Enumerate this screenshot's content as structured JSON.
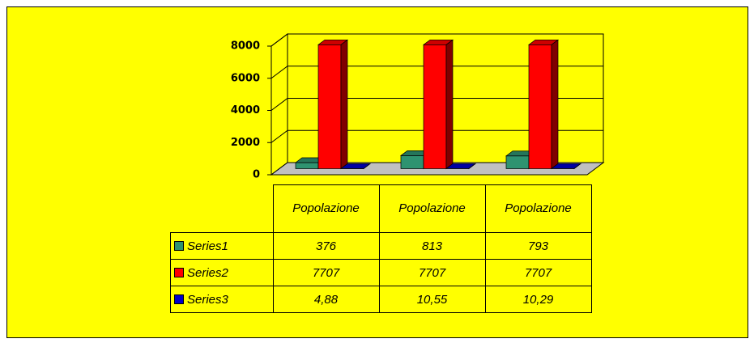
{
  "chart_data": {
    "type": "bar3d",
    "categories": [
      "Popolazione",
      "Popolazione",
      "Popolazione"
    ],
    "series": [
      {
        "name": "Series1",
        "color": "#2e9370",
        "values": [
          376,
          813,
          793
        ]
      },
      {
        "name": "Series2",
        "color": "#ff0000",
        "values": [
          7707,
          7707,
          7707
        ]
      },
      {
        "name": "Series3",
        "color": "#0000cc",
        "values": [
          4.88,
          10.55,
          10.29
        ],
        "value_labels": [
          "4,88",
          "10,55",
          "10,29"
        ]
      }
    ],
    "ylim": [
      0,
      8000
    ],
    "yticks": [
      0,
      2000,
      4000,
      6000,
      8000
    ],
    "grid": true,
    "legend": "table"
  }
}
